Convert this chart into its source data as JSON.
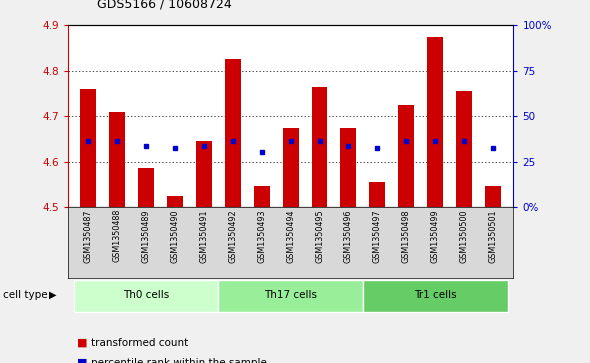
{
  "title": "GDS5166 / 10608724",
  "samples": [
    "GSM1350487",
    "GSM1350488",
    "GSM1350489",
    "GSM1350490",
    "GSM1350491",
    "GSM1350492",
    "GSM1350493",
    "GSM1350494",
    "GSM1350495",
    "GSM1350496",
    "GSM1350497",
    "GSM1350498",
    "GSM1350499",
    "GSM1350500",
    "GSM1350501"
  ],
  "bar_tops": [
    4.76,
    4.71,
    4.585,
    4.525,
    4.645,
    4.825,
    4.545,
    4.675,
    4.765,
    4.675,
    4.555,
    4.725,
    4.875,
    4.755,
    4.545
  ],
  "percentile_values": [
    4.645,
    4.645,
    4.635,
    4.63,
    4.635,
    4.645,
    4.62,
    4.645,
    4.645,
    4.635,
    4.63,
    4.645,
    4.645,
    4.645,
    4.63
  ],
  "bar_bottom": 4.5,
  "ylim": [
    4.5,
    4.9
  ],
  "yticks": [
    4.5,
    4.6,
    4.7,
    4.8,
    4.9
  ],
  "right_yticks": [
    0,
    25,
    50,
    75,
    100
  ],
  "right_ytick_labels": [
    "0%",
    "25",
    "50",
    "75",
    "100%"
  ],
  "bar_color": "#cc0000",
  "dot_color": "#0000cc",
  "grid_color": "#000000",
  "cell_groups": [
    {
      "label": "Th0 cells",
      "start": 0,
      "end": 5,
      "color": "#ccffcc"
    },
    {
      "label": "Th17 cells",
      "start": 5,
      "end": 10,
      "color": "#99ee99"
    },
    {
      "label": "Tr1 cells",
      "start": 10,
      "end": 15,
      "color": "#66cc66"
    }
  ],
  "legend_items": [
    {
      "label": "transformed count",
      "color": "#cc0000"
    },
    {
      "label": "percentile rank within the sample",
      "color": "#0000cc"
    }
  ],
  "cell_type_label": "cell type",
  "left_axis_color": "#cc0000",
  "right_axis_color": "#0000cc",
  "sample_bg_color": "#d8d8d8",
  "fig_bg_color": "#f0f0f0",
  "plot_bg_color": "#ffffff"
}
